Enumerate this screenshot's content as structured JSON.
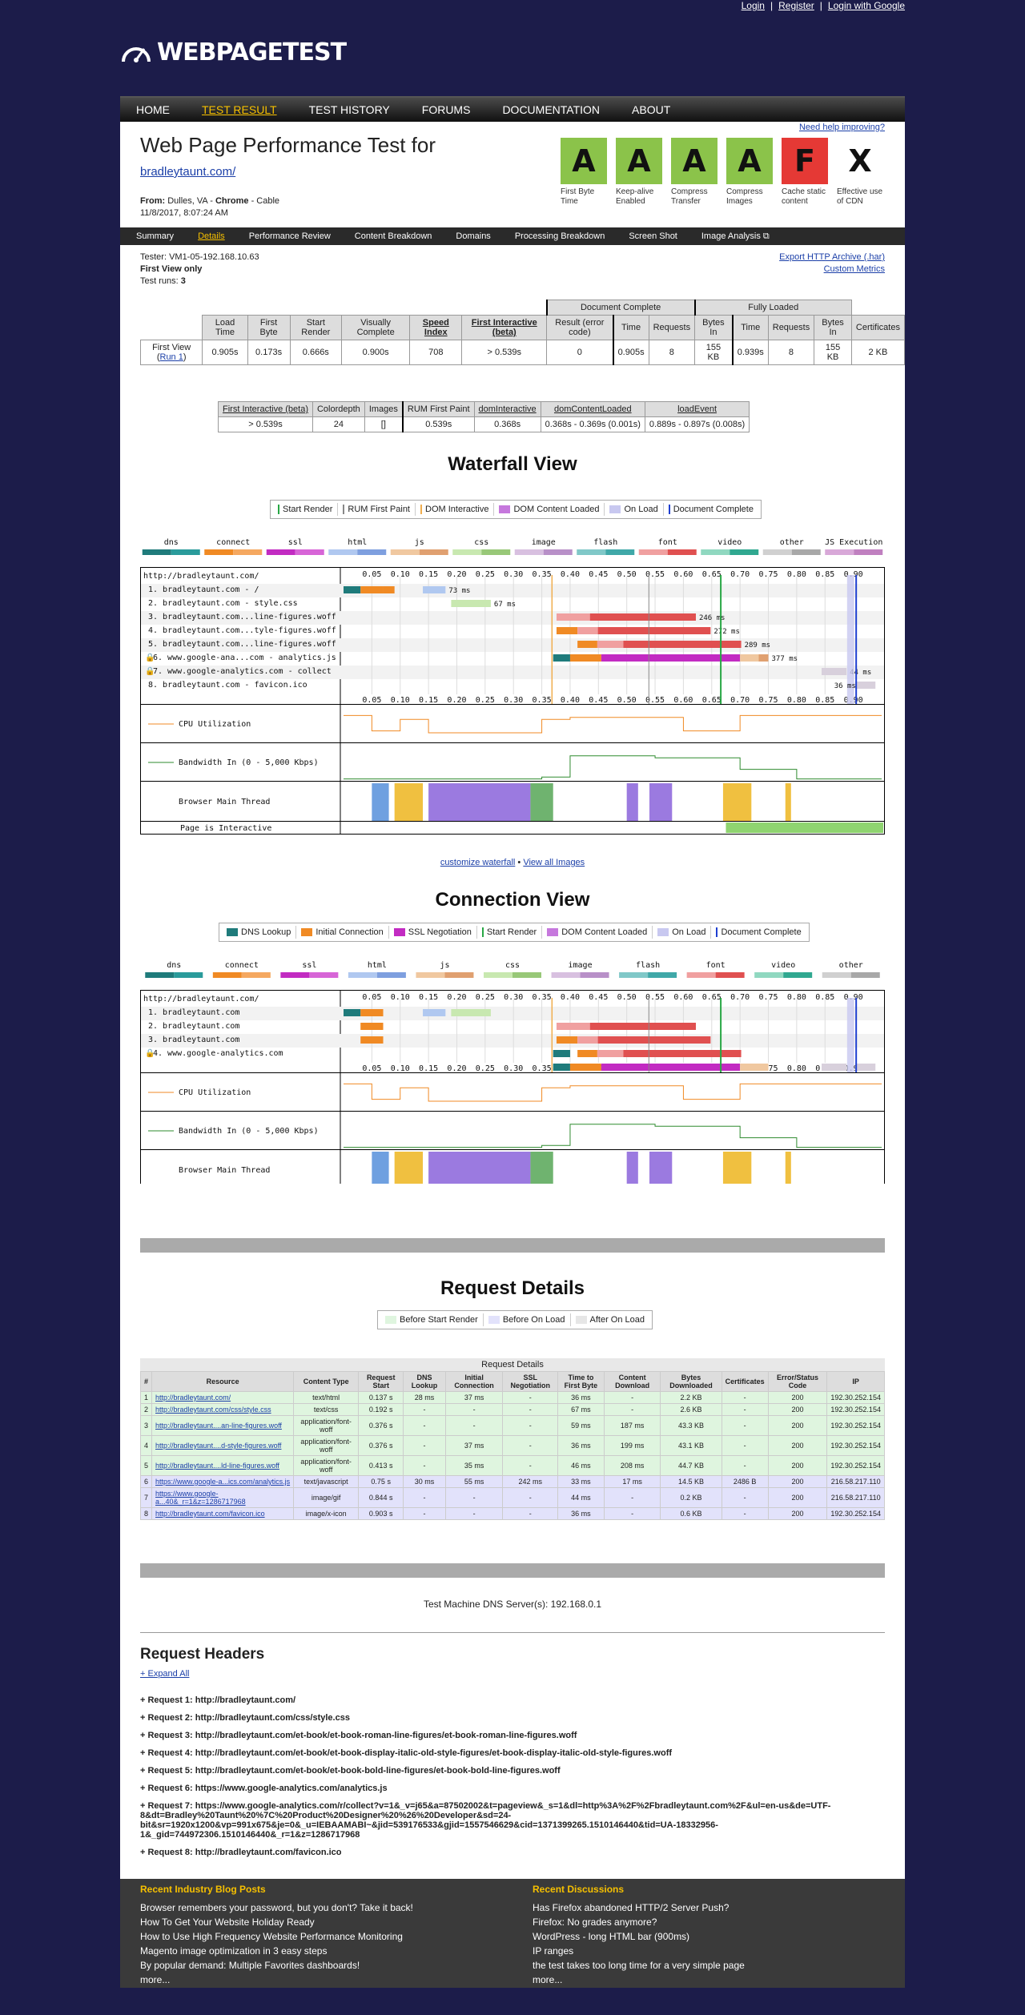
{
  "toplinks": {
    "login": "Login",
    "register": "Register",
    "google": "Login with Google",
    "sep": "|"
  },
  "logo": {
    "text": "WEBPAGETEST",
    "icon": "speedometer-icon"
  },
  "nav": [
    "HOME",
    "TEST RESULT",
    "TEST HISTORY",
    "FORUMS",
    "DOCUMENTATION",
    "ABOUT"
  ],
  "header": {
    "title": "Web Page Performance Test for",
    "url": "bradleytaunt.com/",
    "from_label": "From:",
    "from": "Dulles, VA - ",
    "browser": "Chrome",
    "conn": " - Cable",
    "date": "11/8/2017, 8:07:24 AM",
    "need_help": "Need help improving?"
  },
  "grades": [
    {
      "grade": "A",
      "label": "First Byte Time",
      "color": "#8bc34a"
    },
    {
      "grade": "A",
      "label": "Keep-alive Enabled",
      "color": "#8bc34a"
    },
    {
      "grade": "A",
      "label": "Compress Transfer",
      "color": "#8bc34a"
    },
    {
      "grade": "A",
      "label": "Compress Images",
      "color": "#8bc34a"
    },
    {
      "grade": "F",
      "label": "Cache static content",
      "color": "#e53935"
    },
    {
      "grade": "X",
      "label": "Effective use of CDN",
      "color": "#ffffff"
    }
  ],
  "subnav": [
    "Summary",
    "Details",
    "Performance Review",
    "Content Breakdown",
    "Domains",
    "Processing Breakdown",
    "Screen Shot",
    "Image Analysis"
  ],
  "tester": {
    "line1": "Tester: VM1-05-192.168.10.63",
    "line2": "First View only",
    "runs_label": "Test runs: ",
    "runs": "3"
  },
  "export": {
    "har": "Export HTTP Archive (.har)",
    "metrics": "Custom Metrics"
  },
  "summary": {
    "groups": [
      "Document Complete",
      "Fully Loaded"
    ],
    "headers": [
      "Load Time",
      "First Byte",
      "Start Render",
      "Visually Complete",
      "Speed Index",
      "First Interactive (beta)",
      "Result (error code)",
      "Time",
      "Requests",
      "Bytes In",
      "Time",
      "Requests",
      "Bytes In",
      "Certificates"
    ],
    "row_label": "First View (",
    "run_link": "Run 1",
    "row_label_end": ")",
    "row": [
      "0.905s",
      "0.173s",
      "0.666s",
      "0.900s",
      "708",
      "> 0.539s",
      "0",
      "0.905s",
      "8",
      "155 KB",
      "0.939s",
      "8",
      "155 KB",
      "2 KB"
    ]
  },
  "secondary": {
    "headers": [
      "First Interactive (beta)",
      "Colordepth",
      "Images",
      "RUM First Paint",
      "domInteractive",
      "domContentLoaded",
      "loadEvent"
    ],
    "row": [
      "> 0.539s",
      "24",
      "[]",
      "0.539s",
      "0.368s",
      "0.368s - 0.369s (0.001s)",
      "0.889s - 0.897s (0.008s)"
    ]
  },
  "waterfall": {
    "title": "Waterfall View",
    "legend": [
      {
        "label": "Start Render",
        "color": "#28a745",
        "kind": "line"
      },
      {
        "label": "RUM First Paint",
        "color": "#888888",
        "kind": "line"
      },
      {
        "label": "DOM Interactive",
        "color": "#f0ad4e",
        "kind": "line"
      },
      {
        "label": "DOM Content Loaded",
        "color": "#c678dd",
        "kind": "box"
      },
      {
        "label": "On Load",
        "color": "#c8c8f0",
        "kind": "box"
      },
      {
        "label": "Document Complete",
        "color": "#1f3fd1",
        "kind": "line"
      }
    ],
    "types": [
      "dns",
      "connect",
      "ssl",
      "html",
      "js",
      "css",
      "image",
      "flash",
      "font",
      "video",
      "other",
      "JS Execution"
    ],
    "url": "http://bradleytaunt.com/",
    "rows": [
      "1. bradleytaunt.com - /",
      "2. bradleytaunt.com - style.css",
      "3. bradleytaunt.com...line-figures.woff",
      "4. bradleytaunt.com...tyle-figures.woff",
      "5. bradleytaunt.com...line-figures.woff",
      "6. www.google-ana...com - analytics.js",
      "7. www.google-analytics.com - collect",
      "8. bradleytaunt.com - favicon.ico"
    ],
    "timings": [
      "73 ms",
      "67 ms",
      "246 ms",
      "272 ms",
      "289 ms",
      "377 ms",
      "44 ms",
      "36 ms"
    ],
    "ticks": [
      "0.05",
      "0.10",
      "0.15",
      "0.20",
      "0.25",
      "0.30",
      "0.35",
      "0.40",
      "0.45",
      "0.50",
      "0.55",
      "0.60",
      "0.65",
      "0.70",
      "0.75",
      "0.80",
      "0.85",
      "0.90"
    ],
    "cpu": "CPU Utilization",
    "bw": "Bandwidth In (0 - 5,000 Kbps)",
    "main": "Browser Main Thread",
    "interactive": "Page is Interactive",
    "customize": "customize waterfall",
    "bullet": "•",
    "view_all": "View all Images"
  },
  "connection": {
    "title": "Connection View",
    "legend": [
      {
        "label": "DNS Lookup",
        "color": "#1f7b7b",
        "kind": "box"
      },
      {
        "label": "Initial Connection",
        "color": "#f08a24",
        "kind": "box"
      },
      {
        "label": "SSL Negotiation",
        "color": "#c22bc2",
        "kind": "box"
      },
      {
        "label": "Start Render",
        "color": "#28a745",
        "kind": "line"
      },
      {
        "label": "DOM Content Loaded",
        "color": "#c678dd",
        "kind": "box"
      },
      {
        "label": "On Load",
        "color": "#c8c8f0",
        "kind": "box"
      },
      {
        "label": "Document Complete",
        "color": "#1f3fd1",
        "kind": "line"
      }
    ],
    "types": [
      "dns",
      "connect",
      "ssl",
      "html",
      "js",
      "css",
      "image",
      "flash",
      "font",
      "video",
      "other"
    ],
    "rows": [
      "1. bradleytaunt.com",
      "2. bradleytaunt.com",
      "3. bradleytaunt.com",
      "4. www.google-analytics.com"
    ]
  },
  "request_details": {
    "title": "Request Details",
    "legend": [
      "Before Start Render",
      "Before On Load",
      "After On Load"
    ],
    "caption": "Request Details",
    "headers": [
      "#",
      "Resource",
      "Content Type",
      "Request Start",
      "DNS Lookup",
      "Initial Connection",
      "SSL Negotiation",
      "Time to First Byte",
      "Content Download",
      "Bytes Downloaded",
      "Certificates",
      "Error/Status Code",
      "IP"
    ],
    "rows": [
      [
        "1",
        "http://bradleytaunt.com/",
        "text/html",
        "0.137 s",
        "28 ms",
        "37 ms",
        "-",
        "36 ms",
        "-",
        "2.2 KB",
        "-",
        "200",
        "192.30.252.154"
      ],
      [
        "2",
        "http://bradleytaunt.com/css/style.css",
        "text/css",
        "0.192 s",
        "-",
        "-",
        "-",
        "67 ms",
        "-",
        "2.6 KB",
        "-",
        "200",
        "192.30.252.154"
      ],
      [
        "3",
        "http://bradleytaunt....an-line-figures.woff",
        "application/font-woff",
        "0.376 s",
        "-",
        "-",
        "-",
        "59 ms",
        "187 ms",
        "43.3 KB",
        "-",
        "200",
        "192.30.252.154"
      ],
      [
        "4",
        "http://bradleytaunt....d-style-figures.woff",
        "application/font-woff",
        "0.376 s",
        "-",
        "37 ms",
        "-",
        "36 ms",
        "199 ms",
        "43.1 KB",
        "-",
        "200",
        "192.30.252.154"
      ],
      [
        "5",
        "http://bradleytaunt....ld-line-figures.woff",
        "application/font-woff",
        "0.413 s",
        "-",
        "35 ms",
        "-",
        "46 ms",
        "208 ms",
        "44.7 KB",
        "-",
        "200",
        "192.30.252.154"
      ],
      [
        "6",
        "https://www.google-a...ics.com/analytics.js",
        "text/javascript",
        "0.75 s",
        "30 ms",
        "55 ms",
        "242 ms",
        "33 ms",
        "17 ms",
        "14.5 KB",
        "2486 B",
        "200",
        "216.58.217.110"
      ],
      [
        "7",
        "https://www.google-a...40&_r=1&z=1286717968",
        "image/gif",
        "0.844 s",
        "-",
        "-",
        "-",
        "44 ms",
        "-",
        "0.2 KB",
        "-",
        "200",
        "216.58.217.110"
      ],
      [
        "8",
        "http://bradleytaunt.com/favicon.ico",
        "image/x-icon",
        "0.903 s",
        "-",
        "-",
        "-",
        "36 ms",
        "-",
        "0.6 KB",
        "-",
        "200",
        "192.30.252.154"
      ]
    ]
  },
  "dns": "Test Machine DNS Server(s): 192.168.0.1",
  "request_headers": {
    "title": "Request Headers",
    "expand": "+ Expand All",
    "items": [
      "+ Request 1: http://bradleytaunt.com/",
      "+ Request 2: http://bradleytaunt.com/css/style.css",
      "+ Request 3: http://bradleytaunt.com/et-book/et-book-roman-line-figures/et-book-roman-line-figures.woff",
      "+ Request 4: http://bradleytaunt.com/et-book/et-book-display-italic-old-style-figures/et-book-display-italic-old-style-figures.woff",
      "+ Request 5: http://bradleytaunt.com/et-book/et-book-bold-line-figures/et-book-bold-line-figures.woff",
      "+ Request 6: https://www.google-analytics.com/analytics.js",
      "+ Request 7: https://www.google-analytics.com/r/collect?v=1&_v=j65&a=87502002&t=pageview&_s=1&dl=http%3A%2F%2Fbradleytaunt.com%2F&ul=en-us&de=UTF-8&dt=Bradley%20Taunt%20%7C%20Product%20Designer%20%26%20Developer&sd=24-bit&sr=1920x1200&vp=991x675&je=0&_u=IEBAAMABI~&jid=539176533&gjid=1557546629&cid=1371399265.1510146440&tid=UA-18332956-1&_gid=744972306.1510146440&_r=1&z=1286717968",
      "+ Request 8: http://bradleytaunt.com/favicon.ico"
    ]
  },
  "footer": {
    "blog_title": "Recent Industry Blog Posts",
    "blog": [
      "Browser remembers your password, but you don't? Take it back!",
      "How To Get Your Website Holiday Ready",
      "How to Use High Frequency Website Performance Monitoring",
      "Magento image optimization in 3 easy steps",
      "By popular demand: Multiple Favorites dashboards!",
      "more..."
    ],
    "disc_title": "Recent Discussions",
    "disc": [
      "Has Firefox abandoned HTTP/2 Server Push?",
      "Firefox: No grades anymore?",
      "WordPress - long HTML bar (900ms)",
      "IP ranges",
      "the test takes too long time for a very simple page",
      "more..."
    ]
  }
}
